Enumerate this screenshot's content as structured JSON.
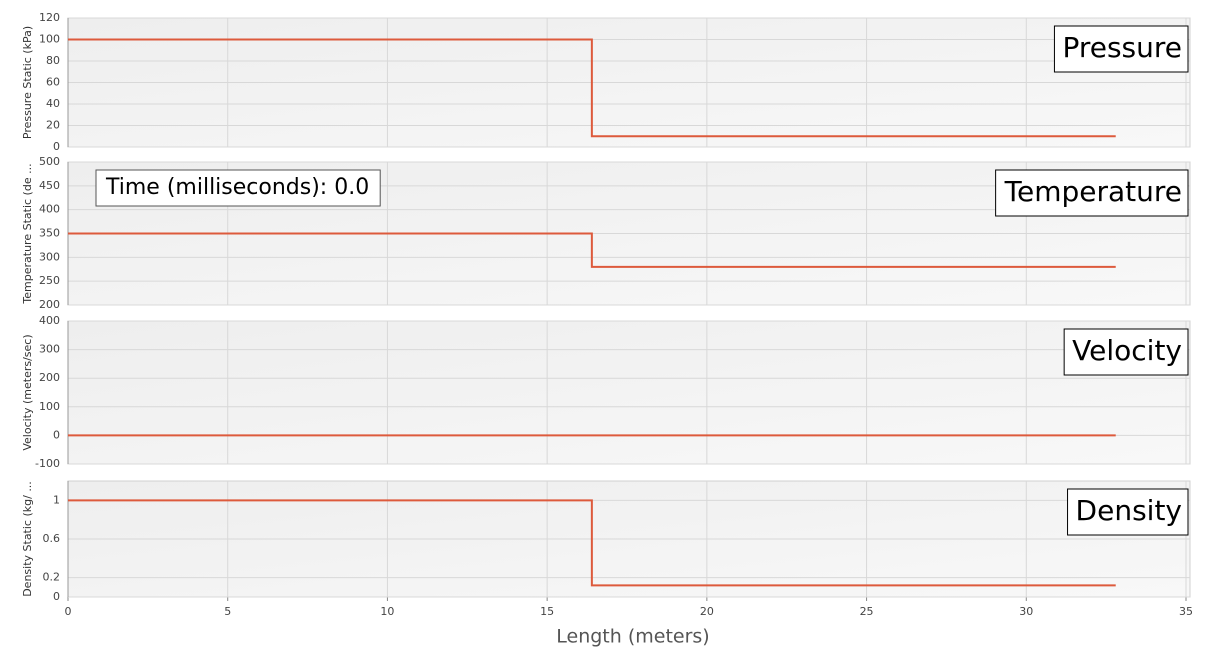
{
  "chart_data": [
    {
      "type": "line",
      "title": "Pressure",
      "y_label": "Pressure Static (kPa)",
      "x": [
        0,
        16.4,
        16.4,
        32.8
      ],
      "values": [
        100,
        100,
        10,
        10
      ],
      "color": "#dd5a3c",
      "xlim": [
        0,
        35
      ],
      "xticks": [
        0,
        5,
        10,
        15,
        20,
        25,
        30,
        35
      ],
      "ylim": [
        0,
        120
      ],
      "yticks": [
        0,
        20,
        40,
        60,
        80,
        100,
        120
      ],
      "grid": true
    },
    {
      "type": "line",
      "title": "Temperature",
      "y_label": "Temperature Static (de ...",
      "annotation": "Time (milliseconds): 0.0",
      "x": [
        0,
        16.4,
        16.4,
        32.8
      ],
      "values": [
        350,
        350,
        280,
        280
      ],
      "color": "#dd5a3c",
      "xlim": [
        0,
        35
      ],
      "xticks": [
        0,
        5,
        10,
        15,
        20,
        25,
        30,
        35
      ],
      "ylim": [
        200,
        500
      ],
      "yticks": [
        200,
        250,
        300,
        350,
        400,
        450,
        500
      ],
      "grid": true
    },
    {
      "type": "line",
      "title": "Velocity",
      "y_label": "Velocity (meters/sec)",
      "x": [
        0,
        32.8
      ],
      "values": [
        0,
        0
      ],
      "color": "#dd5a3c",
      "xlim": [
        0,
        35
      ],
      "xticks": [
        0,
        5,
        10,
        15,
        20,
        25,
        30,
        35
      ],
      "ylim": [
        -100,
        400
      ],
      "yticks": [
        -100,
        0,
        100,
        200,
        300,
        400
      ],
      "grid": true
    },
    {
      "type": "line",
      "title": "Density",
      "y_label": "Density Static (kg/ ...",
      "x_label": "Length (meters)",
      "x": [
        0,
        16.4,
        16.4,
        32.8
      ],
      "values": [
        1,
        1,
        0.12,
        0.12
      ],
      "color": "#dd5a3c",
      "xlim": [
        0,
        35
      ],
      "xticks": [
        0,
        5,
        10,
        15,
        20,
        25,
        30,
        35
      ],
      "ylim": [
        0,
        1.2
      ],
      "yticks": [
        0,
        0.2,
        0.6,
        1
      ],
      "grid": true
    }
  ]
}
